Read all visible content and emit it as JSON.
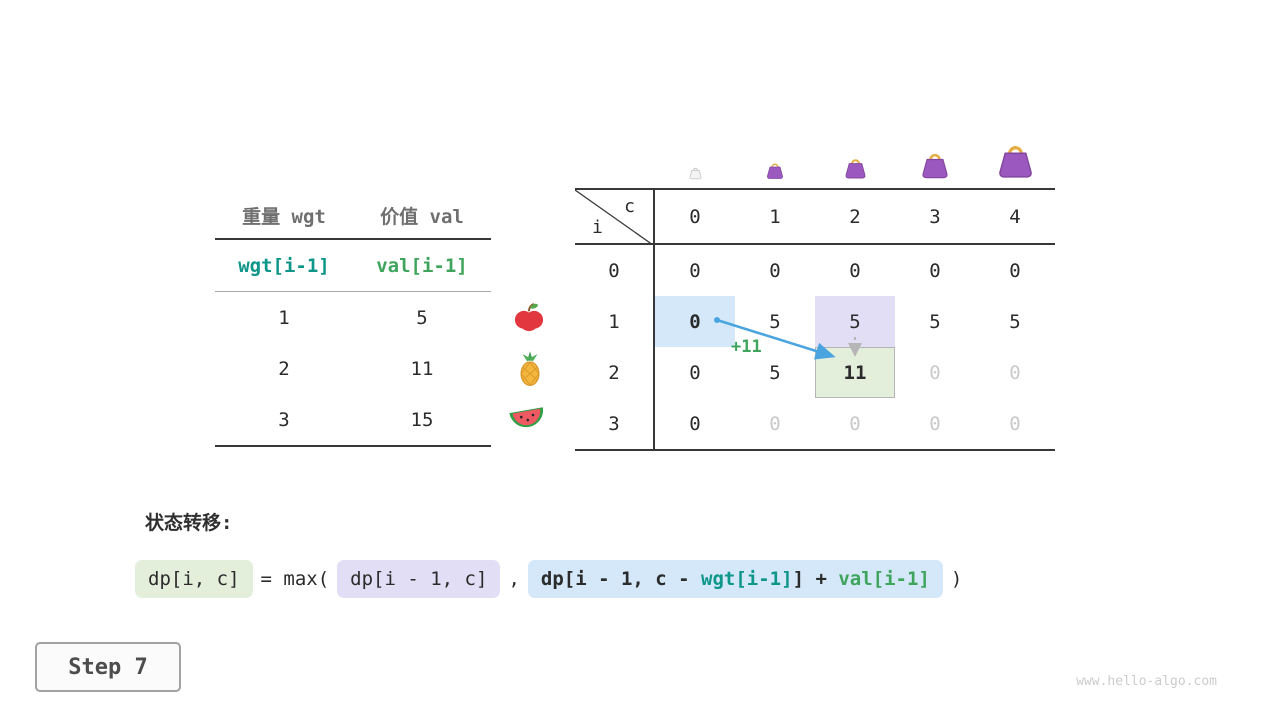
{
  "page": {
    "section_title": "状态转移:",
    "step_label": "Step 7",
    "watermark": "www.hello-algo.com"
  },
  "items_table": {
    "headers": [
      "重量 wgt",
      "价值 val"
    ],
    "formula_row": {
      "wgt": "wgt[i-1]",
      "val": "val[i-1]"
    },
    "rows": [
      {
        "wgt": "1",
        "val": "5",
        "icon": "apple-icon"
      },
      {
        "wgt": "2",
        "val": "11",
        "icon": "pineapple-icon"
      },
      {
        "wgt": "3",
        "val": "15",
        "icon": "watermelon-icon"
      }
    ]
  },
  "dp_table": {
    "corner_top": "c",
    "corner_bottom": "i",
    "col_headers": [
      "0",
      "1",
      "2",
      "3",
      "4"
    ],
    "rows": [
      {
        "header": "0",
        "cells": [
          {
            "t": "0"
          },
          {
            "t": "0"
          },
          {
            "t": "0"
          },
          {
            "t": "0"
          },
          {
            "t": "0"
          }
        ]
      },
      {
        "header": "1",
        "cells": [
          {
            "t": "0",
            "hl": "blue",
            "bold": true
          },
          {
            "t": "5"
          },
          {
            "t": "5",
            "hl": "purple"
          },
          {
            "t": "5"
          },
          {
            "t": "5"
          }
        ]
      },
      {
        "header": "2",
        "cells": [
          {
            "t": "0"
          },
          {
            "t": "5"
          },
          {
            "t": "11",
            "hl": "green",
            "bold": true
          },
          {
            "t": "0",
            "dim": true
          },
          {
            "t": "0",
            "dim": true
          }
        ]
      },
      {
        "header": "3",
        "cells": [
          {
            "t": "0"
          },
          {
            "t": "0",
            "dim": true
          },
          {
            "t": "0",
            "dim": true
          },
          {
            "t": "0",
            "dim": true
          },
          {
            "t": "0",
            "dim": true
          }
        ]
      }
    ],
    "transition_label": "+11"
  },
  "formula": {
    "lhs": "dp[i, c]",
    "eq_max": "= max(",
    "opt1": "dp[i - 1, c]",
    "comma": ",",
    "opt2_prefix": "dp[i - 1, c - ",
    "opt2_wgt": "wgt[i-1]",
    "opt2_mid": "] + ",
    "opt2_val": "val[i-1]",
    "close": ")"
  },
  "colors": {
    "teal": "#0e9689",
    "green": "#3fa45c",
    "arrow_blue": "#49a4e0",
    "highlight_blue": "#d4e8fa",
    "highlight_purple": "#e2def5",
    "highlight_green": "#e4efdb",
    "bag_purple": "#9b59c0",
    "bag_handle_gold": "#e6ad45"
  }
}
